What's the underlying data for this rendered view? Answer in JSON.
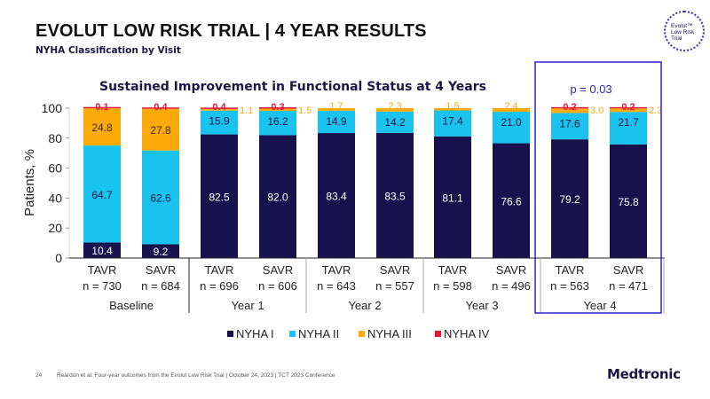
{
  "header": {
    "title": "EVOLUT LOW RISK TRIAL | 4 YEAR RESULTS",
    "subtitle": "NYHA Classification by Visit",
    "logo_text": "Evolut™\nLow Risk\nTrial"
  },
  "footer": {
    "page_number": "24",
    "citation": "Reardon et al. Four-year outcomes from the Evolut Low Risk Trial   |   October 24, 2023   |  TCT 2023 Conference",
    "brand": "Medtronic"
  },
  "colors": {
    "nyha1": "#17124e",
    "nyha2": "#19c3ee",
    "nyha3": "#fbaa0a",
    "nyha4": "#e2173b",
    "highlight_box": "#2b22c8",
    "title_navy": "#1a1746"
  },
  "chart_data": {
    "type": "bar",
    "stacked": true,
    "title": "Sustained Improvement in Functional Status at 4 Years",
    "ylabel": "Patients, %",
    "xlabel": "",
    "ylim": [
      0,
      100
    ],
    "yticks": [
      0,
      20,
      40,
      60,
      80,
      100
    ],
    "legend_position": "bottom",
    "annotation": "p = 0.03",
    "highlight_group": "Year 4",
    "groups": [
      "Baseline",
      "Year 1",
      "Year 2",
      "Year 3",
      "Year 4"
    ],
    "categories": [
      {
        "arm": "TAVR",
        "n": "n = 730",
        "group": "Baseline"
      },
      {
        "arm": "SAVR",
        "n": "n = 684",
        "group": "Baseline"
      },
      {
        "arm": "TAVR",
        "n": "n = 696",
        "group": "Year 1"
      },
      {
        "arm": "SAVR",
        "n": "n = 606",
        "group": "Year 1"
      },
      {
        "arm": "TAVR",
        "n": "n = 643",
        "group": "Year 2"
      },
      {
        "arm": "SAVR",
        "n": "n = 557",
        "group": "Year 2"
      },
      {
        "arm": "TAVR",
        "n": "n = 598",
        "group": "Year 3"
      },
      {
        "arm": "SAVR",
        "n": "n = 496",
        "group": "Year 3"
      },
      {
        "arm": "TAVR",
        "n": "n = 563",
        "group": "Year 4"
      },
      {
        "arm": "SAVR",
        "n": "n = 471",
        "group": "Year 4"
      }
    ],
    "series": [
      {
        "name": "NYHA I",
        "key": "nyha1",
        "values": [
          10.4,
          9.2,
          82.5,
          82.0,
          83.4,
          83.5,
          81.1,
          76.6,
          79.2,
          75.8
        ]
      },
      {
        "name": "NYHA II",
        "key": "nyha2",
        "values": [
          64.7,
          62.6,
          15.9,
          16.2,
          14.9,
          14.2,
          17.4,
          21.0,
          17.6,
          21.7
        ]
      },
      {
        "name": "NYHA III",
        "key": "nyha3",
        "values": [
          24.8,
          27.8,
          1.1,
          1.5,
          1.7,
          2.3,
          1.5,
          2.4,
          3.0,
          2.3
        ]
      },
      {
        "name": "NYHA IV",
        "key": "nyha4",
        "values": [
          0.1,
          0.4,
          0.4,
          0.3,
          null,
          null,
          null,
          null,
          0.2,
          0.2
        ]
      }
    ]
  }
}
